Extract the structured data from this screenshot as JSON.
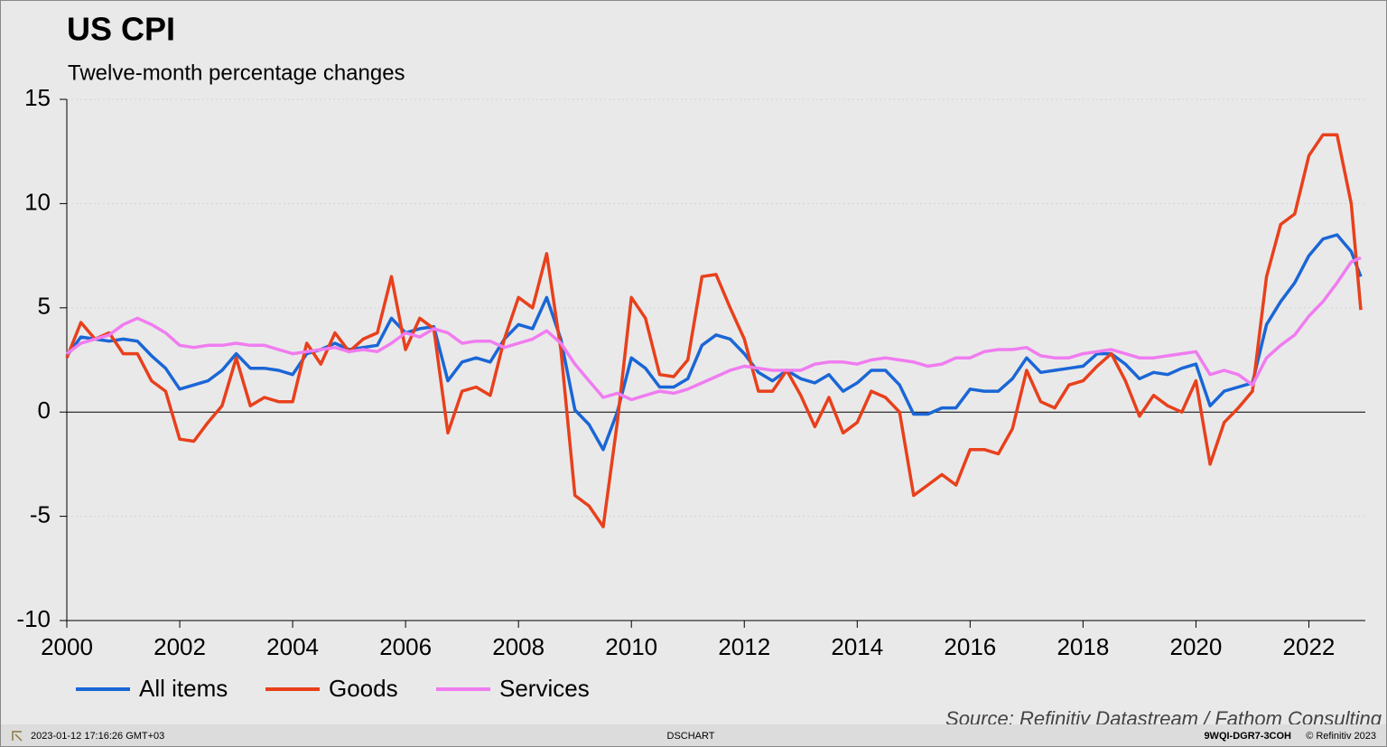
{
  "chart_data": {
    "type": "line",
    "title": "US CPI",
    "subtitle": "Twelve-month percentage changes",
    "x": [
      2000,
      2000.25,
      2000.5,
      2000.75,
      2001,
      2001.25,
      2001.5,
      2001.75,
      2002,
      2002.25,
      2002.5,
      2002.75,
      2003,
      2003.25,
      2003.5,
      2003.75,
      2004,
      2004.25,
      2004.5,
      2004.75,
      2005,
      2005.25,
      2005.5,
      2005.75,
      2006,
      2006.25,
      2006.5,
      2006.75,
      2007,
      2007.25,
      2007.5,
      2007.75,
      2008,
      2008.25,
      2008.5,
      2008.75,
      2009,
      2009.25,
      2009.5,
      2009.75,
      2010,
      2010.25,
      2010.5,
      2010.75,
      2011,
      2011.25,
      2011.5,
      2011.75,
      2012,
      2012.25,
      2012.5,
      2012.75,
      2013,
      2013.25,
      2013.5,
      2013.75,
      2014,
      2014.25,
      2014.5,
      2014.75,
      2015,
      2015.25,
      2015.5,
      2015.75,
      2016,
      2016.25,
      2016.5,
      2016.75,
      2017,
      2017.25,
      2017.5,
      2017.75,
      2018,
      2018.25,
      2018.5,
      2018.75,
      2019,
      2019.25,
      2019.5,
      2019.75,
      2020,
      2020.25,
      2020.5,
      2020.75,
      2021,
      2021.25,
      2021.5,
      2021.75,
      2022,
      2022.25,
      2022.5,
      2022.75,
      2022.92
    ],
    "series": [
      {
        "name": "All items",
        "color": "#1a66d6",
        "values": [
          2.7,
          3.6,
          3.5,
          3.4,
          3.5,
          3.4,
          2.7,
          2.1,
          1.1,
          1.3,
          1.5,
          2.0,
          2.8,
          2.1,
          2.1,
          2.0,
          1.8,
          2.8,
          3.0,
          3.3,
          3.0,
          3.1,
          3.2,
          4.5,
          3.8,
          4.0,
          4.1,
          1.5,
          2.4,
          2.6,
          2.4,
          3.5,
          4.2,
          4.0,
          5.5,
          3.5,
          0.1,
          -0.6,
          -1.8,
          0.0,
          2.6,
          2.1,
          1.2,
          1.2,
          1.6,
          3.2,
          3.7,
          3.5,
          2.8,
          1.9,
          1.5,
          2.0,
          1.6,
          1.4,
          1.8,
          1.0,
          1.4,
          2.0,
          2.0,
          1.3,
          -0.1,
          -0.1,
          0.2,
          0.2,
          1.1,
          1.0,
          1.0,
          1.6,
          2.6,
          1.9,
          2.0,
          2.1,
          2.2,
          2.8,
          2.8,
          2.3,
          1.6,
          1.9,
          1.8,
          2.1,
          2.3,
          0.3,
          1.0,
          1.2,
          1.4,
          4.2,
          5.3,
          6.2,
          7.5,
          8.3,
          8.5,
          7.7,
          6.5
        ]
      },
      {
        "name": "Goods",
        "color": "#e8401c",
        "values": [
          2.6,
          4.3,
          3.5,
          3.8,
          2.8,
          2.8,
          1.5,
          1.0,
          -1.3,
          -1.4,
          -0.5,
          0.3,
          2.6,
          0.3,
          0.7,
          0.5,
          0.5,
          3.3,
          2.3,
          3.8,
          2.9,
          3.5,
          3.8,
          6.5,
          3.0,
          4.5,
          4.0,
          -1.0,
          1.0,
          1.2,
          0.8,
          3.5,
          5.5,
          5.0,
          7.6,
          3.0,
          -4.0,
          -4.5,
          -5.5,
          -0.5,
          5.5,
          4.5,
          1.8,
          1.7,
          2.5,
          6.5,
          6.6,
          5.0,
          3.5,
          1.0,
          1.0,
          2.0,
          0.8,
          -0.7,
          0.7,
          -1.0,
          -0.5,
          1.0,
          0.7,
          0.0,
          -4.0,
          -3.5,
          -3.0,
          -3.5,
          -1.8,
          -1.8,
          -2.0,
          -0.8,
          2.0,
          0.5,
          0.2,
          1.3,
          1.5,
          2.2,
          2.8,
          1.5,
          -0.2,
          0.8,
          0.3,
          0.0,
          1.5,
          -2.5,
          -0.5,
          0.2,
          1.0,
          6.5,
          9.0,
          9.5,
          12.3,
          13.3,
          13.3,
          10.0,
          4.9
        ]
      },
      {
        "name": "Services",
        "color": "#f07cf0",
        "values": [
          2.8,
          3.3,
          3.5,
          3.7,
          4.2,
          4.5,
          4.2,
          3.8,
          3.2,
          3.1,
          3.2,
          3.2,
          3.3,
          3.2,
          3.2,
          3.0,
          2.8,
          2.9,
          3.0,
          3.1,
          2.9,
          3.0,
          2.9,
          3.3,
          3.8,
          3.6,
          4.0,
          3.8,
          3.3,
          3.4,
          3.4,
          3.1,
          3.3,
          3.5,
          3.9,
          3.3,
          2.3,
          1.5,
          0.7,
          0.9,
          0.6,
          0.8,
          1.0,
          0.9,
          1.1,
          1.4,
          1.7,
          2.0,
          2.2,
          2.1,
          2.0,
          2.0,
          2.0,
          2.3,
          2.4,
          2.4,
          2.3,
          2.5,
          2.6,
          2.5,
          2.4,
          2.2,
          2.3,
          2.6,
          2.6,
          2.9,
          3.0,
          3.0,
          3.1,
          2.7,
          2.6,
          2.6,
          2.8,
          2.9,
          3.0,
          2.8,
          2.6,
          2.6,
          2.7,
          2.8,
          2.9,
          1.8,
          2.0,
          1.8,
          1.3,
          2.6,
          3.2,
          3.7,
          4.6,
          5.3,
          6.2,
          7.2,
          7.4
        ]
      }
    ],
    "xlim": [
      2000,
      2023
    ],
    "xticks": [
      2000,
      2002,
      2004,
      2006,
      2008,
      2010,
      2012,
      2014,
      2016,
      2018,
      2020,
      2022
    ],
    "ylim": [
      -10,
      15
    ],
    "yticks": [
      -10,
      -5,
      0,
      5,
      10,
      15
    ],
    "grid": true,
    "source": "Source: Refinitiv Datastream / Fathom Consulting"
  },
  "footer": {
    "timestamp": "2023-01-12 17:16:26 GMT+03",
    "center": "DSCHART",
    "code": "9WQI-DGR7-3COH",
    "copyright": "© Refinitiv 2023"
  }
}
